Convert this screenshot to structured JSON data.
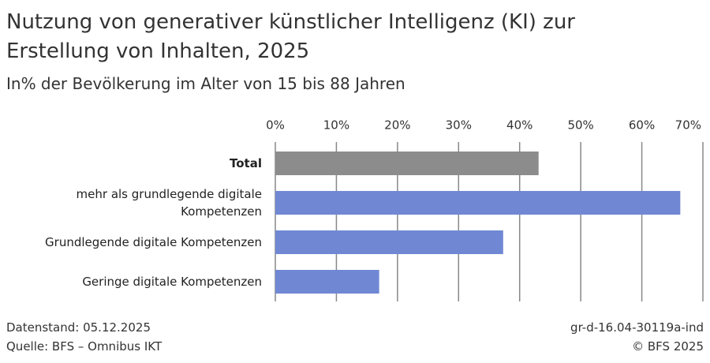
{
  "chart_data": {
    "type": "hbar",
    "title": "Nutzung von generativer künstlicher Intelligenz (KI) zur Erstellung von Inhalten, 2025",
    "subtitle": "In% der Bevölkerung im Alter von 15 bis 88 Jahren",
    "categories": [
      "Total",
      "mehr als grundlegende digitale Kompetenzen",
      "Grundlegende digitale Kompetenzen",
      "Geringe digitale Kompetenzen"
    ],
    "values": [
      43.1,
      66.3,
      37.3,
      17.0
    ],
    "colors": [
      "#8c8c8c",
      "#7088d4",
      "#7088d4",
      "#7088d4"
    ],
    "xlim": [
      0,
      70
    ],
    "xticks": [
      {
        "value": 0,
        "label": "0%"
      },
      {
        "value": 10,
        "label": "10%"
      },
      {
        "value": 20,
        "label": "20%"
      },
      {
        "value": 30,
        "label": "30%"
      },
      {
        "value": 40,
        "label": "40%"
      },
      {
        "value": 50,
        "label": "50%"
      },
      {
        "value": 60,
        "label": "60%"
      },
      {
        "value": 70,
        "label": "70%"
      }
    ],
    "grid": true,
    "footer": {
      "date": "Datenstand: 05.12.2025",
      "source": "Quelle: BFS – Omnibus IKT",
      "id": "gr-d-16.04-30119a-ind",
      "copyright": "© BFS 2025"
    }
  }
}
